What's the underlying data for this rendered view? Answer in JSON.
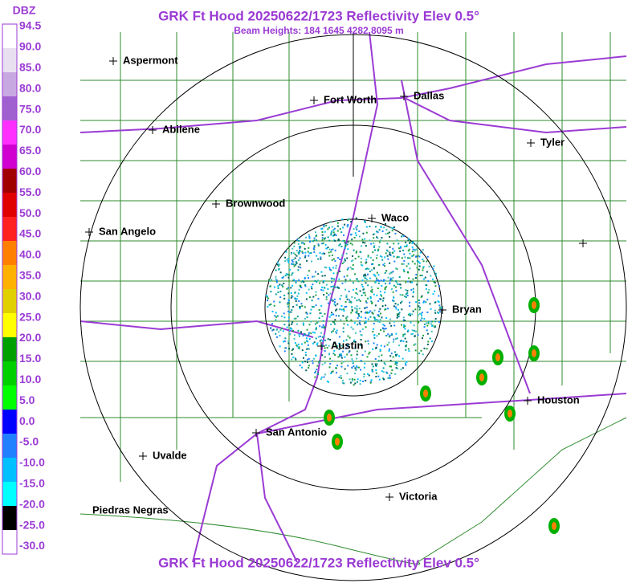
{
  "header": {
    "title": "GRK Ft Hood 20250622/1723 Reflectivity Elev 0.5°",
    "subtitle": "Beam Heights: 184 1645 4282 8095 m"
  },
  "legend": {
    "title": "DBZ",
    "labels": [
      "94.5",
      "90.0",
      "85.0",
      "80.0",
      "75.0",
      "70.0",
      "65.0",
      "60.0",
      "55.0",
      "50.0",
      "45.0",
      "40.0",
      "35.0",
      "30.0",
      "25.0",
      "20.0",
      "15.0",
      "10.0",
      "5.0",
      "0.0",
      "-5.0",
      "-10.0",
      "-15.0",
      "-20.0",
      "-25.0",
      "-30.0"
    ]
  },
  "cities": [
    "Aspermont",
    "Fort Worth",
    "Dallas",
    "Abilene",
    "Tyler",
    "Brownwood",
    "Waco",
    "San Angelo",
    "Bryan",
    "Austin",
    "Houston",
    "San Antonio",
    "Uvalde",
    "Victoria",
    "Piedras Negras"
  ],
  "footer": {
    "title": "GRK Ft Hood 20250622/1723 Reflectivity Elev 0.5°"
  }
}
